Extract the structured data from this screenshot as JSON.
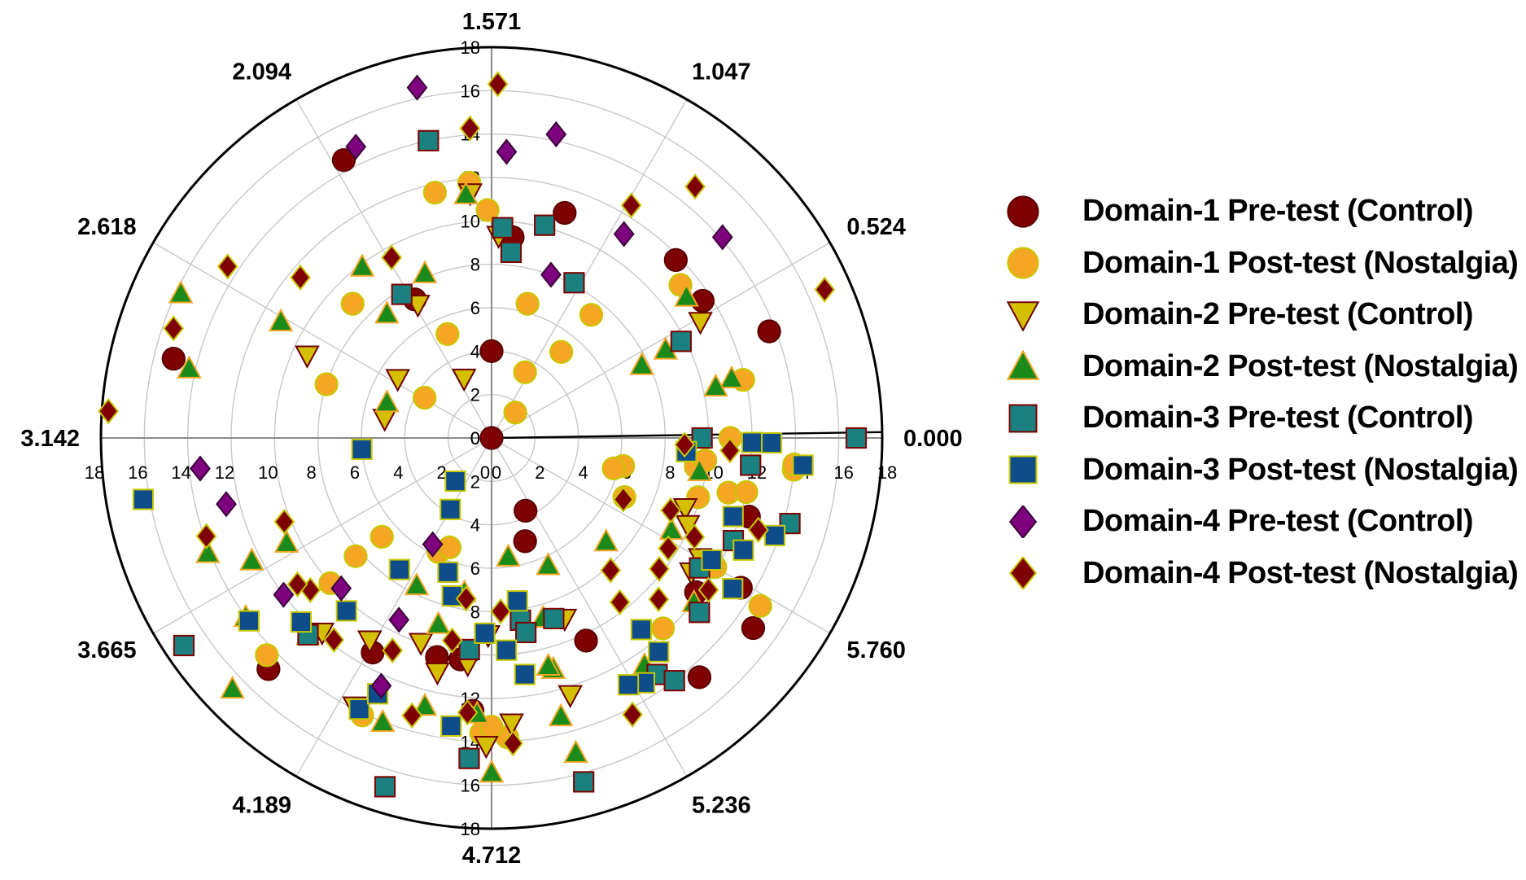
{
  "chart_data": {
    "type": "scatter",
    "subtype": "polar",
    "radial_axis": {
      "range": [
        0,
        18
      ],
      "tick_step": 2,
      "ticks": [
        "0",
        "2",
        "4",
        "6",
        "8",
        "10",
        "12",
        "14",
        "16",
        "18"
      ]
    },
    "angular_axis": {
      "unit": "radians",
      "labels": [
        {
          "angle": 0.0,
          "text": "0.000"
        },
        {
          "angle": 0.5236,
          "text": "0.524"
        },
        {
          "angle": 1.0472,
          "text": "1.047"
        },
        {
          "angle": 1.5708,
          "text": "1.571"
        },
        {
          "angle": 2.0944,
          "text": "2.094"
        },
        {
          "angle": 2.618,
          "text": "2.618"
        },
        {
          "angle": 3.1416,
          "text": "3.142"
        },
        {
          "angle": 3.6652,
          "text": "3.665"
        },
        {
          "angle": 4.1888,
          "text": "4.189"
        },
        {
          "angle": 4.7124,
          "text": "4.712"
        },
        {
          "angle": 5.236,
          "text": "5.236"
        },
        {
          "angle": 5.7596,
          "text": "5.760"
        }
      ]
    },
    "legend": {
      "position": "right"
    },
    "series": [
      {
        "name": "Domain-1 Pre-test (Control)",
        "marker": "circle",
        "fill": "#7f0000",
        "stroke": "#5a0000",
        "points": [
          [
            -12.1,
            0.0
          ],
          [
            4.4,
            11.8
          ],
          [
            11.9,
            7.3
          ],
          [
            8.4,
            9.3
          ],
          [
            7.2,
            10.9
          ],
          [
            3.3,
            11.6
          ],
          [
            9.0,
            4.0
          ],
          [
            2.1,
            13.7
          ],
          [
            -3.7,
            11.8
          ],
          [
            -6.5,
            10.3
          ],
          [
            -9.8,
            10.3
          ],
          [
            -10.4,
            10.4
          ],
          [
            -11.9,
            11.3
          ],
          [
            -13.4,
            14.8
          ],
          [
            -19.4,
            15.1
          ],
          [
            -24.2,
            14.5
          ],
          [
            -3.6,
            14.9
          ],
          [
            -1.7,
            12.4
          ],
          [
            -4.9,
            14.6
          ],
          [
            -3.1,
            13.4
          ],
          [
            -9.4,
            12.6
          ],
          [
            -7.2,
            5.0
          ],
          [
            -6.5,
            3.7
          ]
        ]
      },
      {
        "name": "Domain-1 Post-test (Nostalgia)",
        "marker": "circle",
        "fill": "#f5a623",
        "stroke": "#c8c800",
        "points": [
          [
            9.5,
            11.8
          ],
          [
            5.1,
            7.3
          ],
          [
            7.5,
            6.4
          ],
          [
            4.7,
            1.6
          ],
          [
            6.3,
            3.4
          ],
          [
            5.1,
            5.1
          ],
          [
            0.0,
            11.0
          ],
          [
            1.3,
            11.9
          ],
          [
            3.9,
            11.2
          ],
          [
            10.3,
            11.6
          ],
          [
            13.6,
            8.9
          ],
          [
            9.1,
            10.5
          ],
          [
            11.3,
            5.2
          ],
          [
            14.9,
            3.6
          ],
          [
            16.2,
            8.0
          ],
          [
            26.8,
            13.6
          ],
          [
            22.4,
            14.4
          ],
          [
            -8.7,
            13.8
          ],
          [
            -9.0,
            13.3
          ],
          [
            -0.6,
            14.0
          ],
          [
            -1.3,
            11.2
          ],
          [
            -4.8,
            11.8
          ],
          [
            -11.5,
            14.1
          ],
          [
            -13.8,
            10.0
          ],
          [
            -13.9,
            8.3
          ],
          [
            -13.8,
            6.8
          ],
          [
            -11.5,
            5.8
          ],
          [
            -11.1,
            5.4
          ],
          [
            -2.4,
            6.7
          ],
          [
            -1.2,
            6.2
          ],
          [
            -1.4,
            5.8
          ],
          [
            -0.8,
            9.5
          ],
          [
            -0.5,
            14.0
          ],
          [
            -0.6,
            9.9
          ],
          [
            -3.2,
            14.6
          ],
          [
            -3.0,
            11.9
          ],
          [
            -1.6,
            9.9
          ],
          [
            -1.2,
            12.0
          ]
        ]
      },
      {
        "name": "Domain-2 Pre-test (Control)",
        "marker": "triangle-down",
        "fill": "#d4c000",
        "stroke": "#6b0000",
        "points": [
          [
            -9.1,
            14.2
          ],
          [
            -7.3,
            12.4
          ],
          [
            -3.4,
            11.1
          ],
          [
            -3.0,
            11.1
          ],
          [
            2.9,
            11.0
          ],
          [
            8.8,
            9.3
          ],
          [
            9.5,
            11.3
          ],
          [
            -10.9,
            10.0
          ],
          [
            -9.6,
            10.5
          ],
          [
            11.9,
            7.0
          ],
          [
            11.5,
            3.0
          ],
          [
            15.6,
            9.3
          ],
          [
            17.0,
            5.0
          ],
          [
            14.8,
            5.1
          ],
          [
            -8.6,
            13.2
          ],
          [
            -11.7,
            13.9
          ],
          [
            -13.1,
            11.9
          ],
          [
            -6.8,
            9.0
          ],
          [
            -2.0,
            9.5
          ],
          [
            -12.1,
            10.9
          ],
          [
            -9.1,
            9.1
          ],
          [
            -2.4,
            9.9
          ],
          [
            -10.3,
            11.1
          ]
        ]
      },
      {
        "name": "Domain-2 Post-test (Nostalgia)",
        "marker": "triangle-up",
        "fill": "#1a8a1a",
        "stroke": "#f5a623",
        "points": [
          [
            -13.6,
            16.6
          ],
          [
            -9.3,
            12.7
          ],
          [
            -7.5,
            11.0
          ],
          [
            -9.0,
            15.4
          ],
          [
            -7.6,
            13.2
          ],
          [
            -11.1,
            14.0
          ],
          [
            1.4,
            11.4
          ],
          [
            1.3,
            10.6
          ],
          [
            3.6,
            11.1
          ],
          [
            2.7,
            9.0
          ],
          [
            9.6,
            11.3
          ],
          [
            11.2,
            8.2
          ],
          [
            15.5,
            15.8
          ],
          [
            16.7,
            14.3
          ],
          [
            12.7,
            9.9
          ],
          [
            13.0,
            7.5
          ],
          [
            15.1,
            11.1
          ],
          [
            20.7,
            10.6
          ],
          [
            20.7,
            12.4
          ],
          [
            16.1,
            5.1
          ],
          [
            2.6,
            7.7
          ],
          [
            -8.2,
            5.5
          ],
          [
            -10.0,
            7.2
          ],
          [
            -10.6,
            8.9
          ],
          [
            -10.4,
            12.7
          ],
          [
            -11.7,
            7.6
          ],
          [
            -13.3,
            12.4
          ],
          [
            -14.4,
            14.0
          ],
          [
            -15.8,
            14.1
          ],
          [
            -7.5,
            15.0
          ],
          [
            -7.6,
            10.8
          ],
          [
            -0.9,
            9.7
          ],
          [
            -3.9,
            12.0
          ],
          [
            -2.7,
            9.3
          ],
          [
            -5.6,
            12.6
          ],
          [
            -7.4,
            8.6
          ],
          [
            -6.6,
            6.4
          ],
          [
            -4.2,
            7.1
          ]
        ]
      },
      {
        "name": "Domain-3 Pre-test (Control)",
        "marker": "square",
        "fill": "#1a8080",
        "stroke": "#7f0000",
        "points": [
          [
            0.0,
            16.8
          ],
          [
            2.7,
            9.8
          ],
          [
            8.4,
            8.6
          ],
          [
            6.2,
            8.1
          ],
          [
            8.7,
            9.7
          ],
          [
            10.2,
            14.0
          ],
          [
            12.2,
            7.8
          ],
          [
            7.6,
            10.1
          ],
          [
            -10.7,
            16.8
          ],
          [
            -14.6,
            17.1
          ],
          [
            -4.0,
            12.5
          ],
          [
            -8.1,
            8.5
          ],
          [
            -13.3,
            12.4
          ],
          [
            -3.2,
            11.3
          ],
          [
            -5.5,
            13.3
          ],
          [
            -7.5,
            16.4
          ],
          [
            -9.4,
            14.8
          ],
          [
            -5.3,
            14.0
          ],
          [
            -7.1,
            8.8
          ],
          [
            -8.0,
            9.1
          ],
          [
            -9.6,
            9.8
          ],
          [
            -0.0,
            9.7
          ],
          [
            -0.6,
            12.0
          ],
          [
            -2.3,
            12.1
          ],
          [
            -1.6,
            14.3
          ]
        ]
      },
      {
        "name": "Domain-3 Post-test (Nostalgia)",
        "marker": "square",
        "fill": "#0e4d8a",
        "stroke": "#c8c800",
        "points": [
          [
            -10.8,
            6.5
          ],
          [
            -12.0,
            3.8
          ],
          [
            -13.0,
            2.6
          ],
          [
            -10.4,
            7.5
          ],
          [
            -8.1,
            7.6
          ],
          [
            -8.6,
            9.8
          ],
          [
            -8.2,
            11.0
          ],
          [
            -11.6,
            13.9
          ],
          [
            -14.3,
            14.0
          ],
          [
            -17.0,
            16.3
          ],
          [
            -13.6,
            12.2
          ],
          [
            -17.5,
            6.0
          ],
          [
            -12.5,
            7.4
          ],
          [
            -13.0,
            10.4
          ],
          [
            -11.4,
            12.9
          ],
          [
            -5.8,
            13.3
          ],
          [
            -5.2,
            11.2
          ],
          [
            -2.9,
            11.6
          ],
          [
            -2.4,
            12.7
          ],
          [
            -9.2,
            9.0
          ],
          [
            -9.8,
            13.4
          ],
          [
            -5.2,
            12.5
          ],
          [
            -1.8,
            11.7
          ],
          [
            -0.1,
            12.9
          ],
          [
            -6.1,
            13.0
          ],
          [
            -3.2,
            13.1
          ],
          [
            -0.5,
            14.4
          ],
          [
            -1.9,
            13.8
          ],
          [
            -0.1,
            12.0
          ],
          [
            -0.4,
            9.0
          ]
        ]
      },
      {
        "name": "Domain-4 Pre-test (Control)",
        "marker": "diamond",
        "fill": "#7f007f",
        "stroke": "#3a003a",
        "points": [
          [
            5.7,
            11.2
          ],
          [
            10.2,
            16.5
          ],
          [
            11.5,
            14.8
          ],
          [
            8.7,
            13.2
          ],
          [
            4.1,
            14.1
          ],
          [
            7.8,
            14.3
          ],
          [
            7.0,
            8.0
          ],
          [
            -14.3,
            12.0
          ],
          [
            -16.6,
            12.6
          ],
          [
            -17.4,
            13.5
          ],
          [
            -13.5,
            9.8
          ],
          [
            -11.9,
            5.6
          ],
          [
            -11.7,
            9.4
          ],
          [
            -11.4,
            12.5
          ]
        ]
      },
      {
        "name": "Domain-4 Post-test (Nostalgia)",
        "marker": "diamond",
        "fill": "#7f0000",
        "stroke": "#c8c800",
        "points": [
          [
            2.4,
            16.8
          ],
          [
            5.1,
            14.9
          ],
          [
            5.9,
            12.5
          ],
          [
            8.9,
            16.3
          ],
          [
            9.4,
            14.3
          ],
          [
            14.0,
            11.5
          ],
          [
            14.7,
            14.5
          ],
          [
            17.6,
            17.7
          ],
          [
            16.1,
            15.5
          ],
          [
            11.9,
            9.5
          ],
          [
            -8.6,
            14.1
          ],
          [
            -12.8,
            11.8
          ],
          [
            -10.6,
            13.3
          ],
          [
            -3.5,
            12.2
          ],
          [
            -4.8,
            8.2
          ],
          [
            -1.9,
            13.0
          ],
          [
            -6.3,
            14.3
          ],
          [
            -11.5,
            10.8
          ],
          [
            -14.0,
            10.9
          ],
          [
            -15.8,
            10.3
          ],
          [
            -9.9,
            7.5
          ],
          [
            -14.3,
            11.2
          ],
          [
            -16.1,
            13.9
          ],
          [
            -8.7,
            8.0
          ],
          [
            -10.1,
            9.5
          ],
          [
            -0.3,
            11.0
          ],
          [
            -2.2,
            8.9
          ],
          [
            -0.2,
            8.9
          ],
          [
            -2.6,
            10.4
          ],
          [
            -3.2,
            9.6
          ],
          [
            -3.8,
            9.8
          ],
          [
            -9.5,
            12.7
          ],
          [
            -2.5,
            6.7
          ],
          [
            -5.2,
            9.6
          ],
          [
            -4.4,
            10.7
          ]
        ]
      }
    ]
  }
}
